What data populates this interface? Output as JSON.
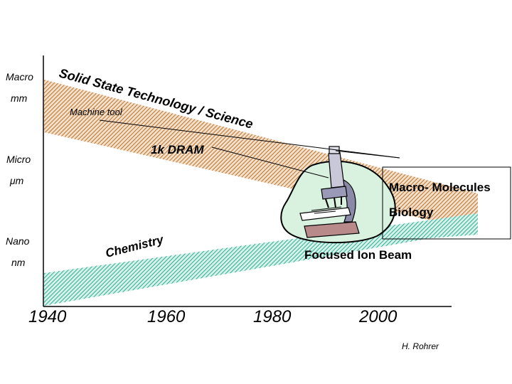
{
  "y_axis": {
    "macro": "Macro",
    "macro_unit": "mm",
    "micro": "Micro",
    "micro_unit": "μm",
    "nano": "Nano",
    "nano_unit": "nm"
  },
  "x_axis": {
    "ticks": [
      "1940",
      "1960",
      "1980",
      "2000"
    ]
  },
  "bands": {
    "top": {
      "label": "Solid State Technology / Science",
      "color": "#c8874a"
    },
    "bottom": {
      "label": "Chemistry",
      "color": "#3fb8a0"
    }
  },
  "annotations": {
    "machine_tool": "Machine tool",
    "dram": "1k DRAM",
    "macro_molecules": "Macro- Molecules",
    "biology": "Biology",
    "focused_ion_beam": "Focused Ion Beam"
  },
  "credit": "H. Rohrer"
}
